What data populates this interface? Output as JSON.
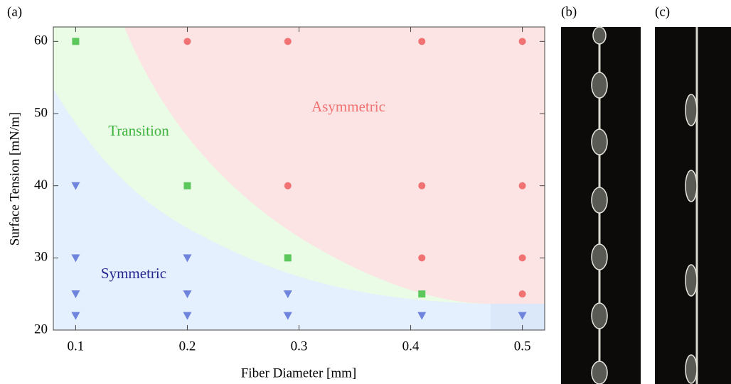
{
  "panel_labels": [
    "(a)",
    "(b)",
    "(c)"
  ],
  "chart_data": {
    "type": "scatter",
    "x_label": "Fiber Diameter [mm]",
    "y_label": "Surface Tension [mN/m]",
    "xlim": [
      0.08,
      0.52
    ],
    "ylim": [
      20,
      62
    ],
    "xticks": [
      0.1,
      0.2,
      0.3,
      0.4,
      0.5
    ],
    "yticks": [
      20,
      30,
      40,
      50,
      60
    ],
    "series": [
      {
        "name": "Asymmetric",
        "color": "#f07272",
        "label_color": "#f07272",
        "marker": "circle",
        "x": [
          0.2,
          0.29,
          0.41,
          0.5,
          0.29,
          0.41,
          0.5,
          0.41,
          0.5,
          0.5
        ],
        "values": [
          60,
          60,
          60,
          60,
          40,
          40,
          40,
          30,
          30,
          25
        ]
      },
      {
        "name": "Transition",
        "color": "#5cc85c",
        "label_color": "#3cb43c",
        "marker": "square",
        "x": [
          0.1,
          0.2,
          0.29,
          0.41
        ],
        "values": [
          60,
          40,
          30,
          25
        ]
      },
      {
        "name": "Symmetric",
        "color": "#6f84dc",
        "label_color": "#25258f",
        "marker": "triangle",
        "x": [
          0.1,
          0.1,
          0.1,
          0.1,
          0.2,
          0.2,
          0.2,
          0.29,
          0.29,
          0.41,
          0.5
        ],
        "values": [
          40,
          30,
          25,
          22,
          30,
          25,
          22,
          25,
          22,
          22,
          22
        ]
      }
    ]
  }
}
